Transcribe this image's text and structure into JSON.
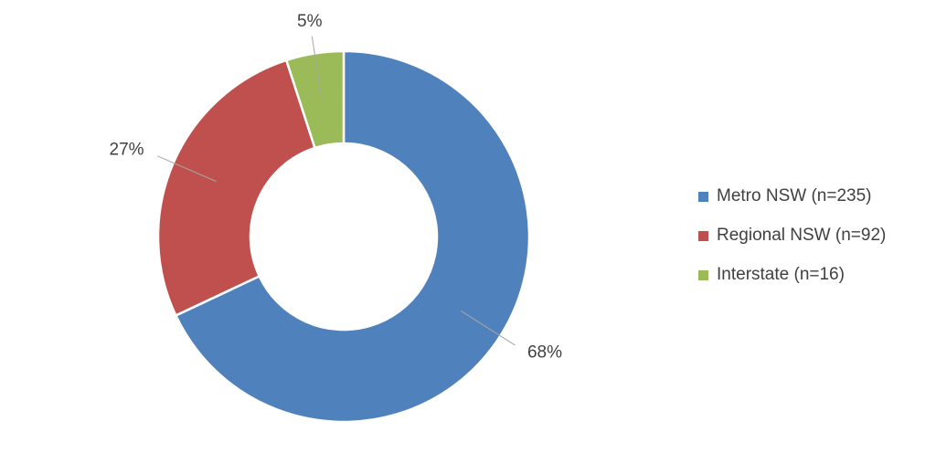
{
  "chart_data": {
    "type": "donut",
    "categories": [
      "Metro NSW (n=235)",
      "Regional NSW (n=92)",
      "Interstate (n=16)"
    ],
    "values": [
      68,
      27,
      5
    ],
    "value_labels": [
      "68%",
      "27%",
      "5%"
    ],
    "colors": [
      "#4f81bd",
      "#c0504d",
      "#9bbb59"
    ],
    "legend": "right"
  }
}
